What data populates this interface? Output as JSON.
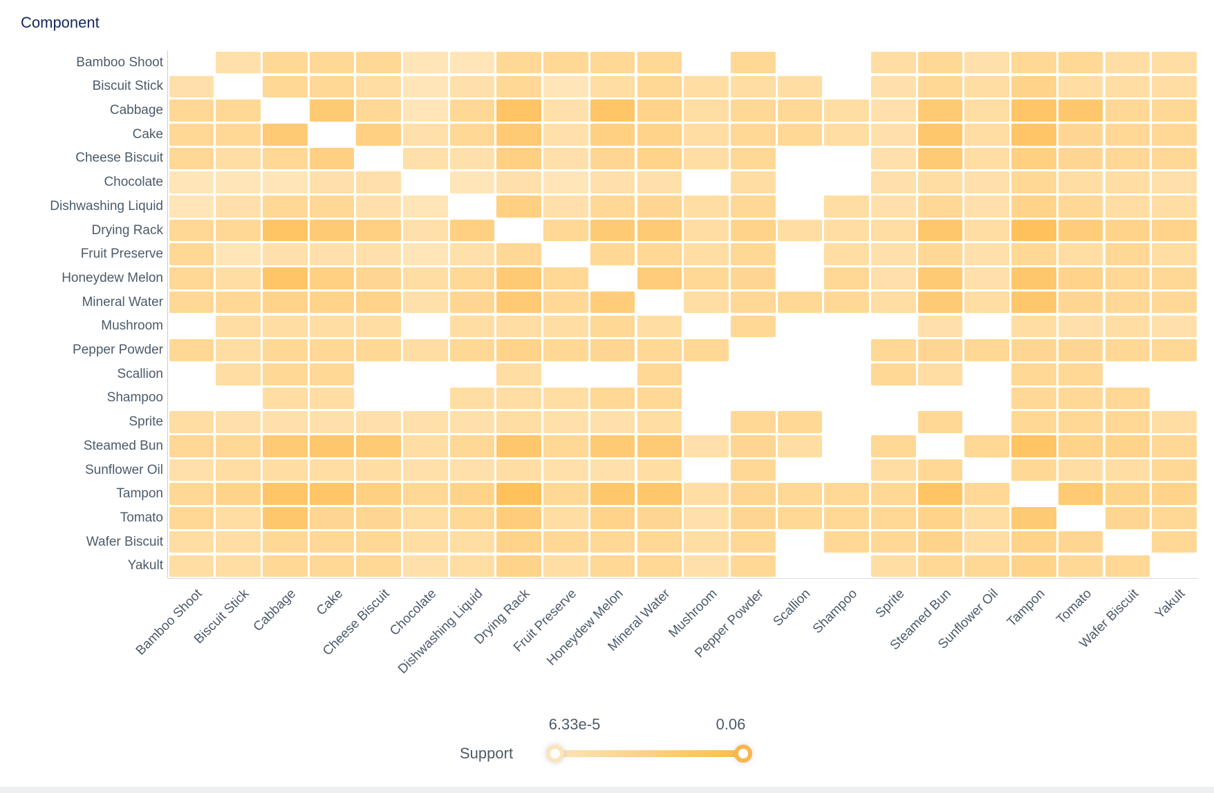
{
  "title": "Component",
  "legend": {
    "label": "Support",
    "min_label": "6.33e-5",
    "max_label": "0.06",
    "min_value": 6.33e-05,
    "max_value": 0.06
  },
  "colors": {
    "cell_min": "#FFF4DD",
    "cell_max": "#FFB845",
    "title_text": "#13265C",
    "label_text": "#4D5A6A",
    "axis_line": "#C9CCD1",
    "slider_track_from": "#FCE4B8",
    "slider_track_to": "#FBBC52",
    "slider_handle_min_ring": "#FCE5BC",
    "slider_handle_max_ring": "#F9B64C",
    "bottom_bar": "#EDEFF3"
  },
  "chart_data": {
    "type": "heatmap",
    "title": "Component",
    "legend_label": "Support",
    "value_range": [
      6.33e-05,
      0.06
    ],
    "xlabel_rotation": -45,
    "grid": true,
    "categories": [
      "Bamboo Shoot",
      "Biscuit Stick",
      "Cabbage",
      "Cake",
      "Cheese Biscuit",
      "Chocolate",
      "Dishwashing Liquid",
      "Drying Rack",
      "Fruit Preserve",
      "Honeydew Melon",
      "Mineral Water",
      "Mushroom",
      "Pepper Powder",
      "Scallion",
      "Shampoo",
      "Sprite",
      "Steamed Bun",
      "Sunflower Oil",
      "Tampon",
      "Tomato",
      "Wafer Biscuit",
      "Yakult"
    ],
    "matrix": [
      [
        null,
        0.02,
        0.028,
        0.028,
        0.028,
        0.015,
        0.015,
        0.028,
        0.028,
        0.028,
        0.028,
        null,
        0.028,
        null,
        null,
        0.023,
        0.028,
        0.02,
        0.028,
        0.028,
        0.023,
        0.023
      ],
      [
        0.02,
        null,
        0.028,
        0.028,
        0.023,
        0.015,
        0.02,
        0.028,
        0.015,
        0.023,
        0.028,
        0.023,
        0.023,
        0.023,
        null,
        0.02,
        0.028,
        0.023,
        0.033,
        0.023,
        0.023,
        0.023
      ],
      [
        0.028,
        0.028,
        null,
        0.042,
        0.028,
        0.015,
        0.028,
        0.048,
        0.02,
        0.047,
        0.033,
        0.023,
        0.028,
        0.028,
        0.023,
        0.02,
        0.042,
        0.023,
        0.047,
        0.045,
        0.028,
        0.028
      ],
      [
        0.028,
        0.028,
        0.042,
        null,
        0.036,
        0.02,
        0.028,
        0.042,
        0.02,
        0.036,
        0.033,
        0.023,
        0.028,
        0.028,
        0.023,
        0.02,
        0.045,
        0.023,
        0.047,
        0.03,
        0.028,
        0.028
      ],
      [
        0.028,
        0.023,
        0.028,
        0.036,
        null,
        0.02,
        0.02,
        0.036,
        0.02,
        0.03,
        0.033,
        0.023,
        0.028,
        null,
        null,
        0.02,
        0.042,
        0.023,
        0.036,
        0.03,
        0.028,
        0.028
      ],
      [
        0.015,
        0.015,
        0.015,
        0.02,
        0.02,
        null,
        0.015,
        0.02,
        0.015,
        0.02,
        0.02,
        null,
        0.023,
        null,
        null,
        0.02,
        0.023,
        0.02,
        0.028,
        0.023,
        0.023,
        0.02
      ],
      [
        0.015,
        0.02,
        0.028,
        0.028,
        0.02,
        0.015,
        null,
        0.036,
        0.02,
        0.028,
        0.03,
        0.023,
        0.028,
        null,
        0.023,
        0.02,
        0.028,
        0.02,
        0.033,
        0.028,
        0.023,
        0.023
      ],
      [
        0.028,
        0.028,
        0.048,
        0.042,
        0.036,
        0.02,
        0.036,
        null,
        0.028,
        0.042,
        0.042,
        0.023,
        0.033,
        0.023,
        0.023,
        0.023,
        0.045,
        0.023,
        0.051,
        0.039,
        0.033,
        0.033
      ],
      [
        0.028,
        0.015,
        0.02,
        0.02,
        0.02,
        0.015,
        0.02,
        0.028,
        null,
        0.028,
        0.028,
        0.023,
        0.028,
        null,
        0.023,
        0.02,
        0.028,
        0.02,
        0.028,
        0.023,
        0.028,
        0.023
      ],
      [
        0.028,
        0.023,
        0.047,
        0.036,
        0.03,
        0.023,
        0.028,
        0.042,
        0.028,
        null,
        0.039,
        0.028,
        0.03,
        null,
        0.028,
        0.02,
        0.042,
        0.02,
        0.045,
        0.033,
        0.028,
        0.028
      ],
      [
        0.028,
        0.028,
        0.033,
        0.033,
        0.033,
        0.02,
        0.03,
        0.042,
        0.028,
        0.039,
        null,
        0.023,
        0.028,
        0.028,
        0.028,
        0.023,
        0.042,
        0.023,
        0.045,
        0.03,
        0.028,
        0.028
      ],
      [
        null,
        0.023,
        0.023,
        0.023,
        0.023,
        null,
        0.023,
        0.023,
        0.023,
        0.028,
        0.023,
        null,
        0.028,
        null,
        null,
        null,
        0.02,
        null,
        0.023,
        0.02,
        0.023,
        0.02
      ],
      [
        0.028,
        0.023,
        0.028,
        0.028,
        0.028,
        0.023,
        0.028,
        0.033,
        0.028,
        0.03,
        0.028,
        0.028,
        null,
        null,
        null,
        0.028,
        0.03,
        0.028,
        0.03,
        0.03,
        0.028,
        0.028
      ],
      [
        null,
        0.023,
        0.028,
        0.028,
        null,
        null,
        null,
        0.023,
        null,
        null,
        0.028,
        null,
        null,
        null,
        null,
        0.028,
        0.023,
        null,
        0.028,
        0.028,
        null,
        null
      ],
      [
        null,
        null,
        0.023,
        0.023,
        null,
        null,
        0.023,
        0.023,
        0.023,
        0.028,
        0.028,
        null,
        null,
        null,
        null,
        null,
        null,
        null,
        0.028,
        0.028,
        0.028,
        null
      ],
      [
        0.023,
        0.02,
        0.02,
        0.02,
        0.02,
        0.02,
        0.02,
        0.023,
        0.02,
        0.02,
        0.023,
        null,
        0.028,
        0.028,
        null,
        null,
        0.028,
        null,
        0.028,
        0.028,
        0.028,
        0.023
      ],
      [
        0.028,
        0.028,
        0.042,
        0.045,
        0.042,
        0.023,
        0.028,
        0.045,
        0.028,
        0.042,
        0.042,
        0.02,
        0.03,
        0.023,
        null,
        0.028,
        null,
        0.028,
        0.048,
        0.033,
        0.033,
        0.028
      ],
      [
        0.02,
        0.023,
        0.023,
        0.023,
        0.023,
        0.02,
        0.02,
        0.023,
        0.02,
        0.02,
        0.023,
        null,
        0.028,
        null,
        null,
        0.023,
        0.028,
        null,
        0.028,
        0.023,
        0.023,
        0.028
      ],
      [
        0.028,
        0.033,
        0.047,
        0.047,
        0.036,
        0.028,
        0.033,
        0.051,
        0.028,
        0.045,
        0.045,
        0.023,
        0.03,
        0.028,
        0.028,
        0.028,
        0.048,
        0.028,
        null,
        0.042,
        0.033,
        0.033
      ],
      [
        0.028,
        0.023,
        0.045,
        0.03,
        0.03,
        0.023,
        0.028,
        0.039,
        0.023,
        0.033,
        0.03,
        0.02,
        0.03,
        0.028,
        0.028,
        0.028,
        0.033,
        0.023,
        0.042,
        null,
        0.03,
        0.028
      ],
      [
        0.023,
        0.023,
        0.028,
        0.028,
        0.028,
        0.023,
        0.023,
        0.033,
        0.028,
        0.028,
        0.028,
        0.023,
        0.028,
        null,
        0.028,
        0.028,
        0.033,
        0.023,
        0.033,
        0.03,
        null,
        0.028
      ],
      [
        0.023,
        0.023,
        0.028,
        0.028,
        0.028,
        0.02,
        0.023,
        0.033,
        0.023,
        0.028,
        0.028,
        0.02,
        0.028,
        null,
        null,
        0.023,
        0.028,
        0.028,
        0.033,
        0.028,
        0.028,
        null
      ]
    ]
  }
}
